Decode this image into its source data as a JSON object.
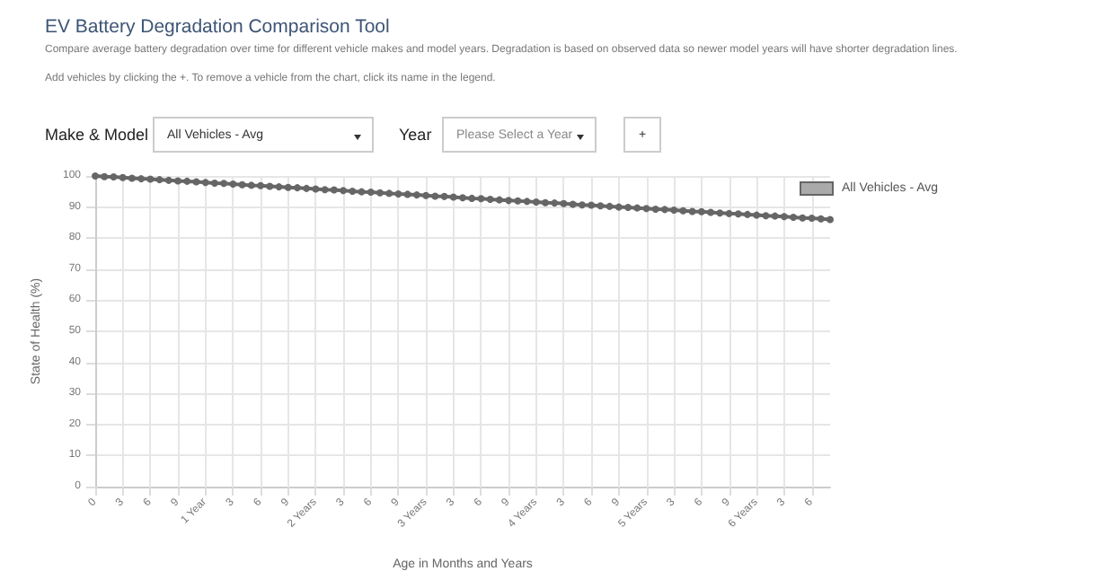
{
  "chart_data": {
    "type": "line",
    "title": "EV Battery Degradation Comparison Tool",
    "subtitle": "Compare average battery degradation over time for different vehicle makes and model years. Degradation is based on observed data so newer model years will have shorter degradation lines.",
    "annotations": [
      "Add vehicles by clicking the +. To remove a vehicle from the chart, click its name in the legend.",
      "Make & Model",
      "All Vehicles - Avg",
      "Year",
      "Please Select a Year",
      "+"
    ],
    "xlabel": "Age in Months and Years",
    "ylabel": "State of Health (%)",
    "categories": [
      "0",
      null,
      null,
      "3",
      null,
      null,
      "6",
      null,
      null,
      "9",
      null,
      null,
      "1 Year",
      null,
      null,
      "3",
      null,
      null,
      "6",
      null,
      null,
      "9",
      null,
      null,
      "2 Years",
      null,
      null,
      "3",
      null,
      null,
      "6",
      null,
      null,
      "9",
      null,
      null,
      "3 Years",
      null,
      null,
      "3",
      null,
      null,
      "6",
      null,
      null,
      "9",
      null,
      null,
      "4 Years",
      null,
      null,
      "3",
      null,
      null,
      "6",
      null,
      null,
      "9",
      null,
      null,
      "5 Years",
      null,
      null,
      "3",
      null,
      null,
      "6",
      null,
      null,
      "9",
      null,
      null,
      "6 Years",
      null,
      null,
      "3",
      null,
      null,
      "6",
      null,
      null
    ],
    "series": [
      {
        "name": "All Vehicles - Avg",
        "color": "#666666",
        "values": [
          100,
          99.8,
          99.7,
          99.5,
          99.3,
          99.1,
          99.0,
          98.8,
          98.6,
          98.4,
          98.3,
          98.1,
          97.9,
          97.7,
          97.6,
          97.4,
          97.2,
          97.0,
          96.9,
          96.7,
          96.5,
          96.3,
          96.2,
          96.0,
          95.8,
          95.6,
          95.5,
          95.3,
          95.1,
          94.9,
          94.8,
          94.6,
          94.4,
          94.2,
          94.1,
          93.9,
          93.7,
          93.5,
          93.4,
          93.2,
          93.0,
          92.8,
          92.7,
          92.5,
          92.3,
          92.1,
          92.0,
          91.8,
          91.6,
          91.4,
          91.3,
          91.1,
          90.9,
          90.7,
          90.6,
          90.4,
          90.2,
          90.0,
          89.9,
          89.7,
          89.5,
          89.3,
          89.2,
          89.0,
          88.8,
          88.6,
          88.5,
          88.3,
          88.1,
          87.9,
          87.8,
          87.6,
          87.4,
          87.2,
          87.1,
          86.9,
          86.7,
          86.5,
          86.4,
          86.2,
          86.0
        ]
      }
    ],
    "ylim": [
      0,
      100
    ],
    "yticks": [
      0,
      10,
      20,
      30,
      40,
      50,
      60,
      70,
      80,
      90,
      100
    ],
    "grid": true,
    "legend": "top right",
    "marker": "circle",
    "line_style": "solid"
  }
}
